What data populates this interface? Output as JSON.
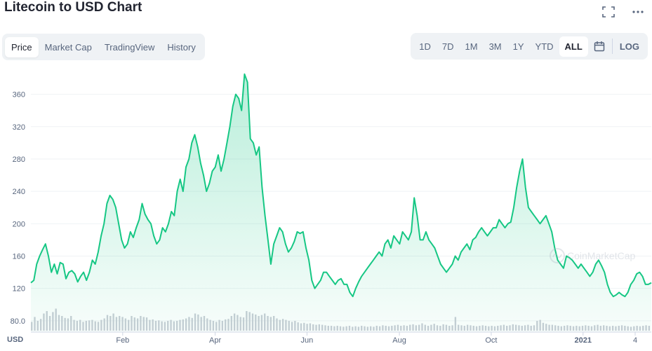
{
  "header": {
    "title": "Litecoin to USD Chart",
    "fullscreen_icon": "expand-icon",
    "more_icon": "more-dots-icon"
  },
  "tabs": [
    {
      "label": "Price",
      "active": true
    },
    {
      "label": "Market Cap",
      "active": false
    },
    {
      "label": "TradingView",
      "active": false
    },
    {
      "label": "History",
      "active": false
    }
  ],
  "ranges": [
    {
      "label": "1D",
      "active": false
    },
    {
      "label": "7D",
      "active": false
    },
    {
      "label": "1M",
      "active": false
    },
    {
      "label": "3M",
      "active": false
    },
    {
      "label": "1Y",
      "active": false
    },
    {
      "label": "YTD",
      "active": false
    },
    {
      "label": "ALL",
      "active": true
    }
  ],
  "calendar_icon": "calendar-icon",
  "log_label": "LOG",
  "watermark": "CoinMarketCap",
  "colors": {
    "line": "#16c784",
    "accent": "#16c784",
    "text": "#58667e"
  },
  "chart_data": {
    "type": "area",
    "currency_label": "USD",
    "y_ticks": [
      "360",
      "320",
      "280",
      "240",
      "200",
      "160",
      "120",
      "80.0"
    ],
    "x_ticks": [
      "Feb",
      "Apr",
      "Jun",
      "Aug",
      "Oct",
      "2021",
      "4"
    ],
    "ylim": [
      66,
      390
    ],
    "grid": true,
    "series": [
      {
        "values": [
          127,
          130,
          150,
          160,
          168,
          175,
          160,
          140,
          150,
          138,
          152,
          150,
          132,
          140,
          142,
          138,
          128,
          135,
          140,
          130,
          140,
          155,
          150,
          165,
          185,
          200,
          225,
          235,
          230,
          220,
          200,
          180,
          170,
          175,
          190,
          183,
          195,
          205,
          225,
          212,
          205,
          200,
          185,
          175,
          180,
          195,
          190,
          200,
          215,
          210,
          240,
          255,
          240,
          270,
          280,
          300,
          310,
          295,
          275,
          260,
          240,
          250,
          265,
          270,
          285,
          265,
          280,
          300,
          320,
          345,
          360,
          355,
          340,
          385,
          375,
          305,
          300,
          285,
          295,
          245,
          210,
          180,
          150,
          175,
          185,
          195,
          190,
          175,
          165,
          170,
          178,
          190,
          188,
          190,
          170,
          155,
          130,
          120,
          125,
          130,
          140,
          140,
          135,
          130,
          125,
          130,
          132,
          125,
          125,
          115,
          110,
          120,
          128,
          135,
          140,
          145,
          150,
          155,
          160,
          165,
          160,
          175,
          180,
          170,
          185,
          180,
          175,
          190,
          185,
          180,
          190,
          232,
          210,
          180,
          180,
          190,
          180,
          175,
          170,
          160,
          150,
          145,
          140,
          145,
          150,
          160,
          155,
          165,
          170,
          175,
          168,
          180,
          183,
          190,
          195,
          190,
          185,
          190,
          195,
          195,
          205,
          200,
          195,
          200,
          202,
          220,
          245,
          265,
          280,
          245,
          220,
          215,
          210,
          205,
          200,
          205,
          210,
          200,
          190,
          170,
          155,
          150,
          145,
          160,
          158,
          155,
          150,
          145,
          150,
          145,
          140,
          135,
          140,
          150,
          155,
          148,
          140,
          125,
          115,
          110,
          112,
          115,
          112,
          110,
          115,
          125,
          130,
          138,
          140,
          135,
          125,
          125,
          127
        ]
      }
    ],
    "volume": [
      0.18,
      0.28,
      0.2,
      0.24,
      0.35,
      0.4,
      0.3,
      0.38,
      0.45,
      0.32,
      0.3,
      0.26,
      0.25,
      0.3,
      0.22,
      0.2,
      0.22,
      0.18,
      0.2,
      0.21,
      0.22,
      0.19,
      0.18,
      0.22,
      0.25,
      0.32,
      0.3,
      0.35,
      0.28,
      0.3,
      0.28,
      0.25,
      0.22,
      0.3,
      0.27,
      0.25,
      0.3,
      0.28,
      0.27,
      0.22,
      0.23,
      0.2,
      0.21,
      0.19,
      0.18,
      0.2,
      0.22,
      0.19,
      0.2,
      0.22,
      0.23,
      0.25,
      0.28,
      0.26,
      0.35,
      0.33,
      0.28,
      0.3,
      0.25,
      0.22,
      0.2,
      0.18,
      0.22,
      0.2,
      0.23,
      0.24,
      0.3,
      0.35,
      0.32,
      0.28,
      0.27,
      0.4,
      0.38,
      0.35,
      0.33,
      0.3,
      0.32,
      0.35,
      0.3,
      0.28,
      0.3,
      0.25,
      0.22,
      0.24,
      0.22,
      0.2,
      0.18,
      0.2,
      0.17,
      0.15,
      0.16,
      0.14,
      0.15,
      0.13,
      0.12,
      0.13,
      0.12,
      0.11,
      0.1,
      0.1,
      0.09,
      0.1,
      0.09,
      0.08,
      0.09,
      0.1,
      0.08,
      0.09,
      0.08,
      0.1,
      0.09,
      0.08,
      0.09,
      0.08,
      0.1,
      0.09,
      0.11,
      0.1,
      0.09,
      0.1,
      0.11,
      0.12,
      0.1,
      0.11,
      0.1,
      0.12,
      0.13,
      0.11,
      0.12,
      0.15,
      0.12,
      0.1,
      0.12,
      0.14,
      0.11,
      0.1,
      0.13,
      0.12,
      0.1,
      0.11,
      0.28,
      0.12,
      0.11,
      0.1,
      0.12,
      0.11,
      0.1,
      0.09,
      0.1,
      0.11,
      0.1,
      0.09,
      0.1,
      0.09,
      0.1,
      0.11,
      0.12,
      0.1,
      0.11,
      0.13,
      0.12,
      0.11,
      0.1,
      0.11,
      0.12,
      0.1,
      0.11,
      0.2,
      0.22,
      0.16,
      0.14,
      0.12,
      0.12,
      0.11,
      0.1,
      0.09,
      0.1,
      0.11,
      0.1,
      0.09,
      0.1,
      0.09,
      0.1,
      0.11,
      0.1,
      0.09,
      0.11,
      0.12,
      0.1,
      0.11,
      0.1,
      0.09,
      0.1,
      0.09,
      0.1,
      0.11,
      0.1,
      0.09,
      0.08,
      0.09,
      0.1,
      0.09,
      0.1,
      0.11,
      0.1
    ]
  }
}
